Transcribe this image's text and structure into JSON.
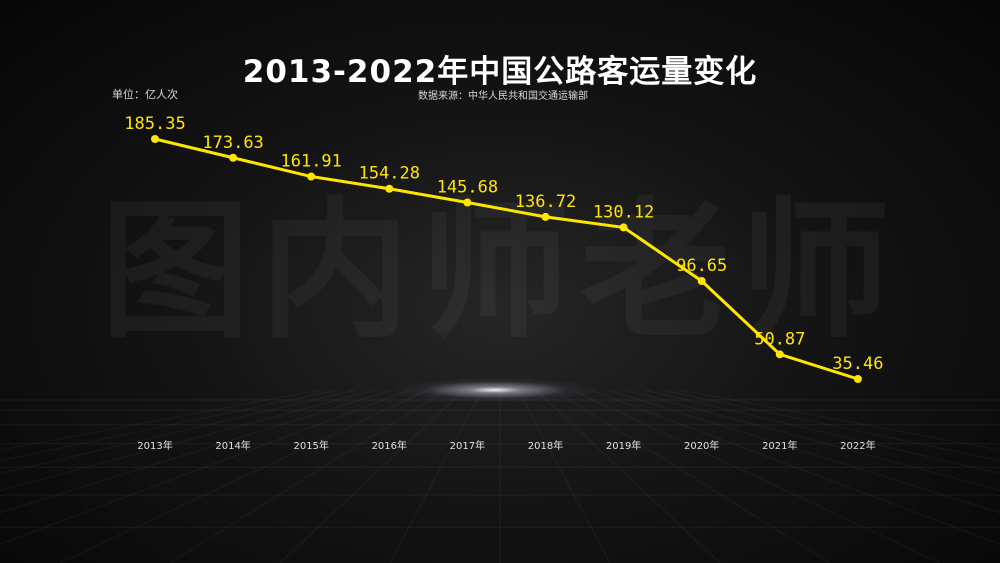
{
  "header": {
    "title": "2013-2022年中国公路客运量变化",
    "unit": "单位：亿人次",
    "source": "数据来源：中华人民共和国交通运输部",
    "watermark": "图内师老师"
  },
  "colors": {
    "line": "#ffe600",
    "label": "#ffe600",
    "axis_text": "#e0e0e0",
    "background": "#0a0a0a"
  },
  "chart_data": {
    "type": "line",
    "title": "2013-2022年中国公路客运量变化",
    "xlabel": "",
    "ylabel": "",
    "categories": [
      "2013年",
      "2014年",
      "2015年",
      "2016年",
      "2017年",
      "2018年",
      "2019年",
      "2020年",
      "2021年",
      "2022年"
    ],
    "series": [
      {
        "values": [
          185.35,
          173.63,
          161.91,
          154.28,
          145.68,
          136.72,
          130.12,
          96.65,
          50.87,
          35.46
        ]
      }
    ],
    "value_labels": [
      "185.35",
      "173.63",
      "161.91",
      "154.28",
      "145.68",
      "136.72",
      "130.12",
      "96.65",
      "50.87",
      "35.46"
    ],
    "ylim": [
      0,
      200
    ],
    "grid": false,
    "legend": "none"
  }
}
